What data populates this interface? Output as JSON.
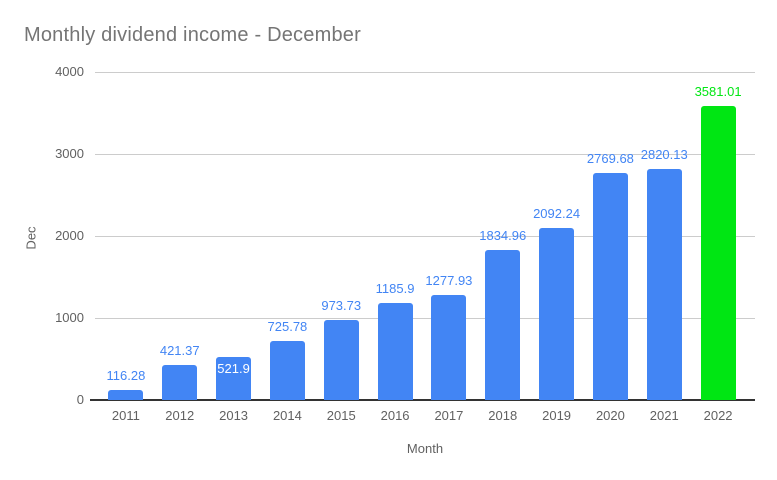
{
  "chart_data": {
    "type": "bar",
    "title": "Monthly dividend income - December",
    "xlabel": "Month",
    "ylabel": "Dec",
    "categories": [
      "2011",
      "2012",
      "2013",
      "2014",
      "2015",
      "2016",
      "2017",
      "2018",
      "2019",
      "2020",
      "2021",
      "2022"
    ],
    "values": [
      116.28,
      421.37,
      521.9,
      725.78,
      973.73,
      1185.9,
      1277.93,
      1834.96,
      2092.24,
      2769.68,
      2820.13,
      3581.01
    ],
    "value_labels": [
      "116.28",
      "421.37",
      "521.9",
      "725.78",
      "973.73",
      "1185.9",
      "1277.93",
      "1834.96",
      "2092.24",
      "2769.68",
      "2820.13",
      "3581.01"
    ],
    "bar_colors": [
      "#4285F4",
      "#4285F4",
      "#4285F4",
      "#4285F4",
      "#4285F4",
      "#4285F4",
      "#4285F4",
      "#4285F4",
      "#4285F4",
      "#4285F4",
      "#4285F4",
      "#00E613"
    ],
    "value_label_colors": [
      "#4285F4",
      "#4285F4",
      "#FFFFFF",
      "#4285F4",
      "#4285F4",
      "#4285F4",
      "#4285F4",
      "#4285F4",
      "#4285F4",
      "#4285F4",
      "#4285F4",
      "#00E613"
    ],
    "value_label_placement": [
      "above",
      "above",
      "inside",
      "above",
      "above",
      "above",
      "above",
      "above",
      "above",
      "above",
      "above",
      "above"
    ],
    "ylim": [
      0,
      4000
    ],
    "yticks": [
      0,
      1000,
      2000,
      3000,
      4000
    ],
    "grid": true,
    "legend": "none",
    "colors": {
      "bar_blue": "#4285F4",
      "bar_green": "#00E613",
      "gridline": "#CCCCCC",
      "axis_baseline": "#333333",
      "title_text": "#757575",
      "tick_text": "#616161"
    }
  }
}
